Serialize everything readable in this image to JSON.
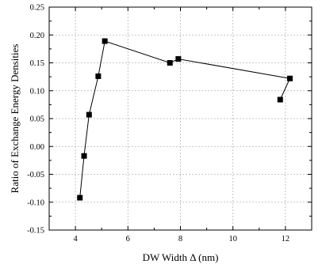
{
  "chart_data": {
    "type": "line",
    "xlabel": "DW Width Δ (nm)",
    "ylabel": "Ratio of Exchange Energy Densities",
    "xlim": [
      3,
      13
    ],
    "ylim": [
      -0.15,
      0.25
    ],
    "xticks": [
      4,
      6,
      8,
      10,
      12
    ],
    "yticks": [
      -0.15,
      -0.1,
      -0.05,
      0.0,
      0.05,
      0.1,
      0.15,
      0.2,
      0.25
    ],
    "grid": true,
    "marker": "square",
    "series": [
      {
        "x": [
          4.17,
          4.33,
          4.52,
          4.87,
          5.12,
          7.6,
          7.92,
          12.17,
          11.8
        ],
        "y": [
          -0.092,
          -0.017,
          0.057,
          0.126,
          0.189,
          0.15,
          0.157,
          0.122,
          0.084
        ]
      }
    ]
  }
}
